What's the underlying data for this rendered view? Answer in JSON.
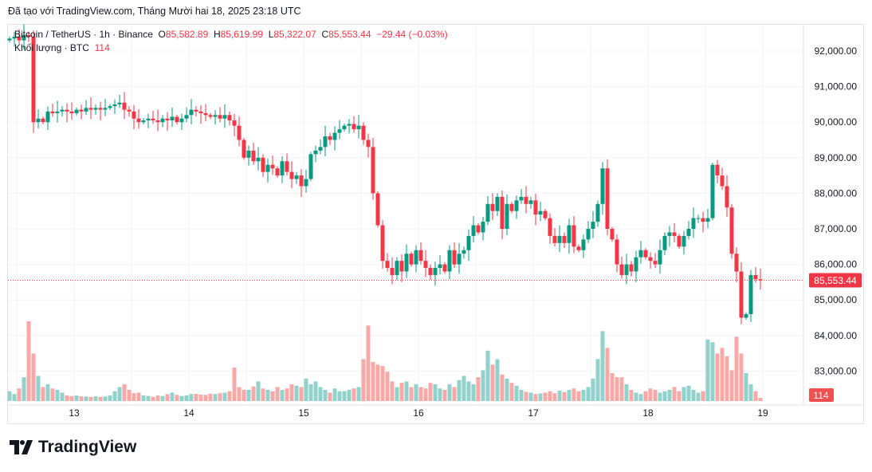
{
  "caption": "Đã tạo với TradingView.com, Tháng Mười hai 18, 2025 23:18 UTC",
  "legend": {
    "symbol": "Bitcoin / TetherUS · 1h · Binance",
    "o_label": "O",
    "o": "85,582.89",
    "h_label": "H",
    "h": "85,619.99",
    "l_label": "L",
    "l": "85,322.07",
    "c_label": "C",
    "c": "85,553.44",
    "change": "−29.44 (−0.03%)",
    "volume_label": "Khối lượng · BTC",
    "volume_value": "114"
  },
  "price_tag": "85,553.44",
  "volume_tag": "114",
  "logo_text": "TradingView",
  "colors": {
    "up": "#089981",
    "down": "#f23645",
    "up_vol": "#92d2cc",
    "down_vol": "#f7a9a7",
    "grid": "#f0f3fa"
  },
  "chart_data": {
    "type": "candlestick",
    "title": "Bitcoin / TetherUS · 1h · Binance",
    "ylim": [
      82300,
      92800
    ],
    "y_ticks": [
      "92,000.00",
      "91,000.00",
      "90,000.00",
      "89,000.00",
      "88,000.00",
      "87,000.00",
      "86,000.00",
      "85,000.00",
      "84,000.00",
      "83,000.00"
    ],
    "y_tick_values": [
      92000,
      91000,
      90000,
      89000,
      88000,
      87000,
      86000,
      85000,
      84000,
      83000
    ],
    "x_ticks": [
      "13",
      "14",
      "15",
      "16",
      "17",
      "18",
      "19"
    ],
    "x_tick_index": [
      13.5,
      37.5,
      61.5,
      85.5,
      109.5,
      133.5,
      157.5
    ],
    "first_open": 92300,
    "closes": [
      92350,
      92400,
      92300,
      92450,
      92400,
      90000,
      90100,
      90000,
      90300,
      90250,
      90300,
      90350,
      90300,
      90250,
      90350,
      90300,
      90400,
      90350,
      90400,
      90350,
      90400,
      90450,
      90500,
      90550,
      90350,
      90300,
      90100,
      90000,
      90050,
      90100,
      90050,
      90000,
      90100,
      90050,
      90150,
      90000,
      90100,
      90200,
      90350,
      90300,
      90250,
      90200,
      90150,
      90200,
      90100,
      90200,
      90050,
      89900,
      89500,
      89000,
      89200,
      88900,
      89000,
      88600,
      88800,
      88700,
      88500,
      88900,
      88600,
      88400,
      88500,
      88200,
      88400,
      89100,
      89200,
      89300,
      89600,
      89500,
      89700,
      89800,
      89900,
      89950,
      89800,
      89900,
      89500,
      89300,
      88000,
      87100,
      86100,
      85900,
      85700,
      86100,
      85800,
      86300,
      86000,
      86400,
      86100,
      85900,
      85700,
      85900,
      86000,
      85800,
      86400,
      86000,
      86300,
      86400,
      86800,
      87100,
      86900,
      87200,
      87700,
      87500,
      87900,
      87000,
      87700,
      87500,
      87800,
      87900,
      87700,
      87800,
      87400,
      87500,
      87300,
      86800,
      86600,
      86800,
      86600,
      87100,
      86500,
      86400,
      86700,
      87000,
      87200,
      87700,
      88700,
      87000,
      86700,
      86000,
      85700,
      86000,
      85800,
      86200,
      86400,
      86200,
      86100,
      86000,
      86400,
      86800,
      86900,
      86800,
      86500,
      86800,
      87000,
      87300,
      87300,
      87200,
      87300,
      88800,
      88500,
      88200,
      87600,
      86300,
      85800,
      84500,
      84600,
      85700,
      85582.89,
      85553.44
    ],
    "volumes": [
      350,
      250,
      450,
      850,
      2850,
      1700,
      900,
      500,
      600,
      450,
      400,
      300,
      200,
      180,
      200,
      170,
      160,
      150,
      170,
      150,
      160,
      200,
      350,
      500,
      600,
      400,
      280,
      300,
      200,
      180,
      150,
      200,
      180,
      250,
      300,
      220,
      180,
      200,
      250,
      260,
      230,
      220,
      260,
      250,
      280,
      300,
      350,
      1200,
      500,
      400,
      400,
      520,
      700,
      450,
      400,
      350,
      500,
      400,
      450,
      600,
      550,
      500,
      800,
      600,
      700,
      500,
      400,
      300,
      450,
      350,
      350,
      400,
      450,
      500,
      1500,
      2700,
      1400,
      1300,
      1250,
      1050,
      700,
      500,
      650,
      700,
      500,
      600,
      500,
      450,
      650,
      600,
      450,
      400,
      600,
      500,
      750,
      900,
      700,
      600,
      850,
      1100,
      1800,
      1300,
      1500,
      950,
      800,
      650,
      550,
      400,
      330,
      300,
      250,
      270,
      300,
      350,
      280,
      370,
      320,
      400,
      450,
      350,
      400,
      500,
      800,
      1500,
      2500,
      1900,
      1000,
      850,
      850,
      600,
      400,
      300,
      250,
      350,
      450,
      400,
      300,
      350,
      400,
      500,
      350,
      500,
      550,
      400,
      300,
      350,
      2200,
      2100,
      1700,
      1900,
      1600,
      1100,
      2300,
      1700,
      1000,
      600,
      350,
      114
    ],
    "last_price": 85553.44
  }
}
